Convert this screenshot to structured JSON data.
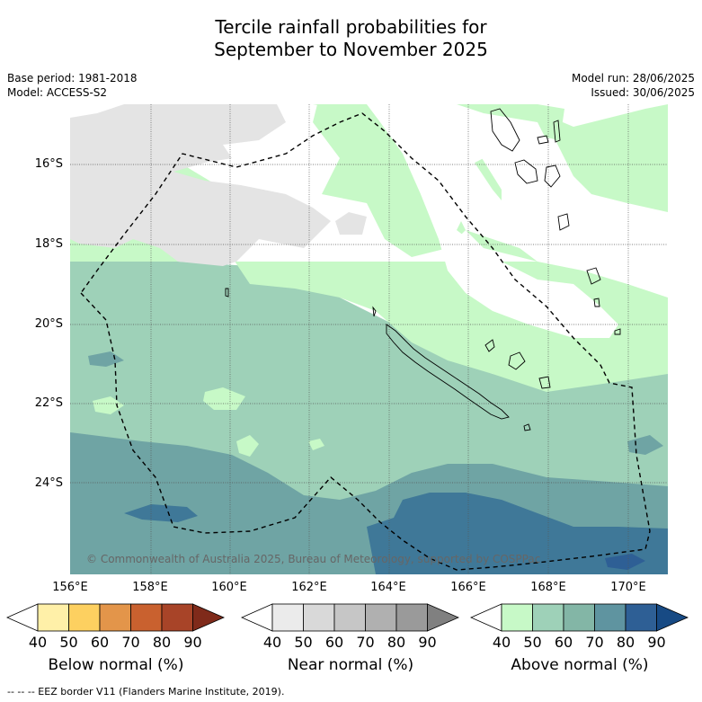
{
  "title_line1": "Tercile rainfall probabilities for",
  "title_line2": "September to November 2025",
  "base_period": "Base period: 1981-2018",
  "model": "Model: ACCESS-S2",
  "model_run": "Model run: 28/06/2025",
  "issued": "Issued: 30/06/2025",
  "copyright": "© Commonwealth of Australia 2025, Bureau of Meteorology, supported by COSPPac",
  "footnote": "-- -- -- EEZ border V11 (Flanders Marine Institute, 2019).",
  "lat_labels": [
    "16°S",
    "18°S",
    "20°S",
    "22°S",
    "24°S"
  ],
  "lon_labels": [
    "156°E",
    "158°E",
    "160°E",
    "162°E",
    "164°E",
    "166°E",
    "168°E",
    "170°E"
  ],
  "colorbars": [
    {
      "label": "Below normal (%)",
      "ticks": [
        "40",
        "50",
        "60",
        "70",
        "80",
        "90"
      ],
      "colors": [
        "#ffffff",
        "#fff0a8",
        "#fdd060",
        "#e3954a",
        "#c9612f",
        "#a84428",
        "#7f2a1a"
      ]
    },
    {
      "label": "Near normal (%)",
      "ticks": [
        "40",
        "50",
        "60",
        "70",
        "80",
        "90"
      ],
      "colors": [
        "#ffffff",
        "#ebebeb",
        "#d9d9d9",
        "#c6c6c6",
        "#b0b0b0",
        "#9a9a9a",
        "#808080"
      ]
    },
    {
      "label": "Above normal (%)",
      "ticks": [
        "40",
        "50",
        "60",
        "70",
        "80",
        "90"
      ],
      "colors": [
        "#ffffff",
        "#c7f9c7",
        "#9ed1b8",
        "#83b6a6",
        "#5f94a0",
        "#2e5f95",
        "#174a84"
      ]
    }
  ],
  "map_colors": {
    "near": "#e4e4e4",
    "above50": "#c7f9c7",
    "above60": "#9ed1b8",
    "above70": "#6fa4a4",
    "above80": "#3f7898",
    "above80b": "#2e5f95"
  }
}
